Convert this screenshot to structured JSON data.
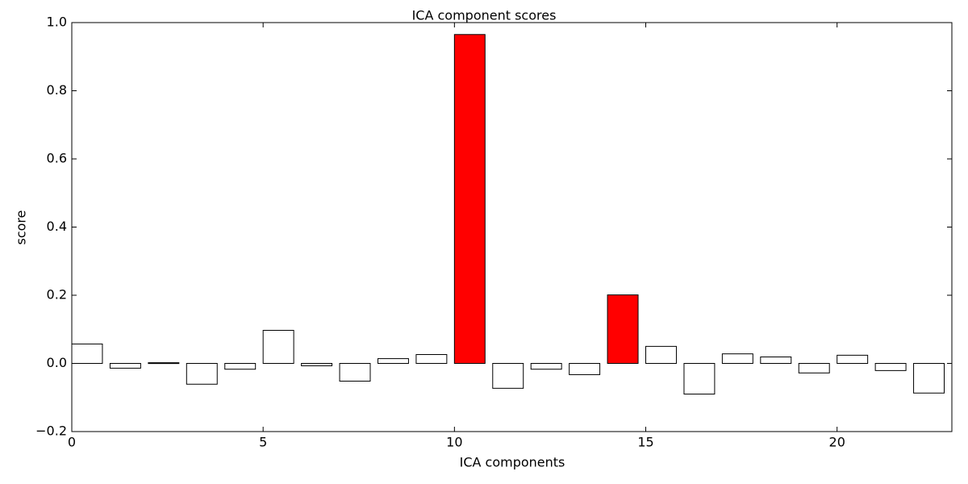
{
  "chart_data": {
    "type": "bar",
    "title": "ICA component scores",
    "xlabel": "ICA components",
    "ylabel": "score",
    "x": [
      0,
      1,
      2,
      3,
      4,
      5,
      6,
      7,
      8,
      9,
      10,
      11,
      12,
      13,
      14,
      15,
      16,
      17,
      18,
      19,
      20,
      21,
      22
    ],
    "values": [
      0.057,
      -0.014,
      0.002,
      -0.061,
      -0.017,
      0.097,
      -0.007,
      -0.052,
      0.014,
      0.026,
      0.965,
      -0.073,
      -0.017,
      -0.033,
      0.201,
      0.05,
      -0.09,
      0.028,
      0.019,
      -0.028,
      0.024,
      -0.021,
      -0.087
    ],
    "colors": [
      "#ffffff",
      "#ffffff",
      "#ffffff",
      "#ffffff",
      "#ffffff",
      "#ffffff",
      "#ffffff",
      "#ffffff",
      "#ffffff",
      "#ffffff",
      "#ff0000",
      "#ffffff",
      "#ffffff",
      "#ffffff",
      "#ff0000",
      "#ffffff",
      "#ffffff",
      "#ffffff",
      "#ffffff",
      "#ffffff",
      "#ffffff",
      "#ffffff",
      "#ffffff"
    ],
    "bar_width": 0.8,
    "xlim": [
      0,
      23
    ],
    "xticks": [
      0,
      5,
      10,
      15,
      20
    ],
    "ylim": [
      -0.2,
      1.0
    ],
    "yticks": [
      {
        "value": -0.2,
        "label": "−0.2"
      },
      {
        "value": 0,
        "label": "0.0"
      },
      0.2,
      0.4,
      0.6,
      0.8,
      {
        "value": 1,
        "label": "1.0"
      }
    ]
  }
}
